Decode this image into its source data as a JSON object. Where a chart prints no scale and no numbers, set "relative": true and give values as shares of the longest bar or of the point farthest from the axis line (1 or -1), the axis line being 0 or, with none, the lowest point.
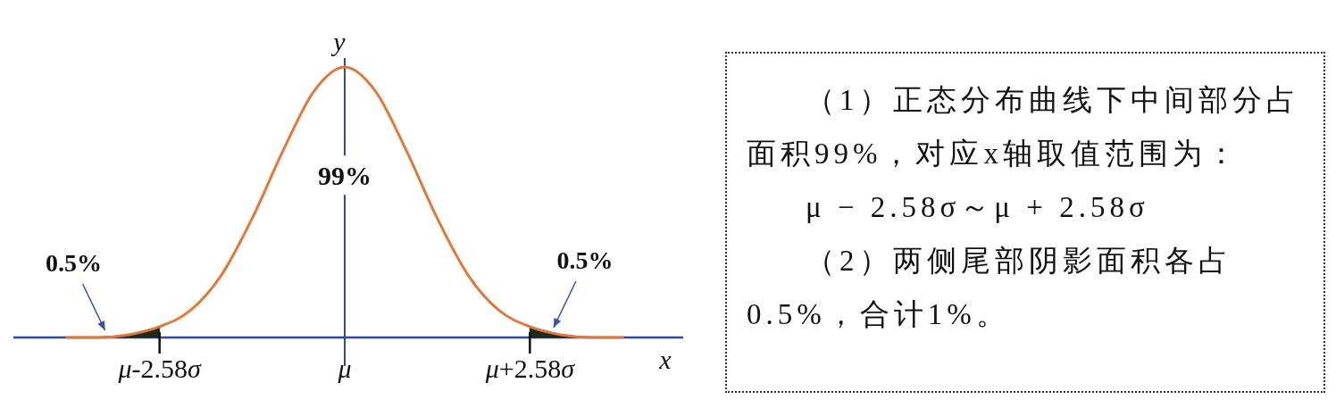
{
  "chart_data": {
    "type": "line",
    "relative": true,
    "xlabel": "x",
    "ylabel": "y",
    "categories": [
      null,
      null,
      null,
      "μ-2.58σ",
      null,
      null,
      null,
      null,
      null,
      "μ",
      null,
      null,
      null,
      null,
      null,
      "μ+2.58σ",
      null,
      null,
      null
    ],
    "series": [
      {
        "color": "#e0783a",
        "values": [
          0,
          0,
          0.01,
          0.04,
          0.1,
          0.23,
          0.44,
          0.69,
          0.91,
          1,
          0.91,
          0.69,
          0.44,
          0.23,
          0.1,
          0.04,
          0.01,
          0,
          0
        ]
      },
      {
        "type": "area",
        "color": "#1c2b1c",
        "values": [
          0,
          0,
          0.01,
          0.04,
          null,
          null,
          null,
          null,
          null,
          null,
          null,
          null,
          null,
          null,
          null,
          null,
          null,
          null,
          null
        ]
      },
      {
        "type": "area",
        "color": "#1c2b1c",
        "values": [
          null,
          null,
          null,
          null,
          null,
          null,
          null,
          null,
          null,
          null,
          null,
          null,
          null,
          null,
          null,
          0.04,
          0.01,
          0,
          0
        ]
      }
    ],
    "annotations": [
      "99%",
      "0.5%",
      "0.5%",
      "（1）正态分布曲线下中间部分占面积99%，对应x轴取值范围为：",
      "μ − 2.58σ～μ + 2.58σ",
      "（2）两侧尾部阴影面积各占0.5%，合计1%。"
    ]
  }
}
